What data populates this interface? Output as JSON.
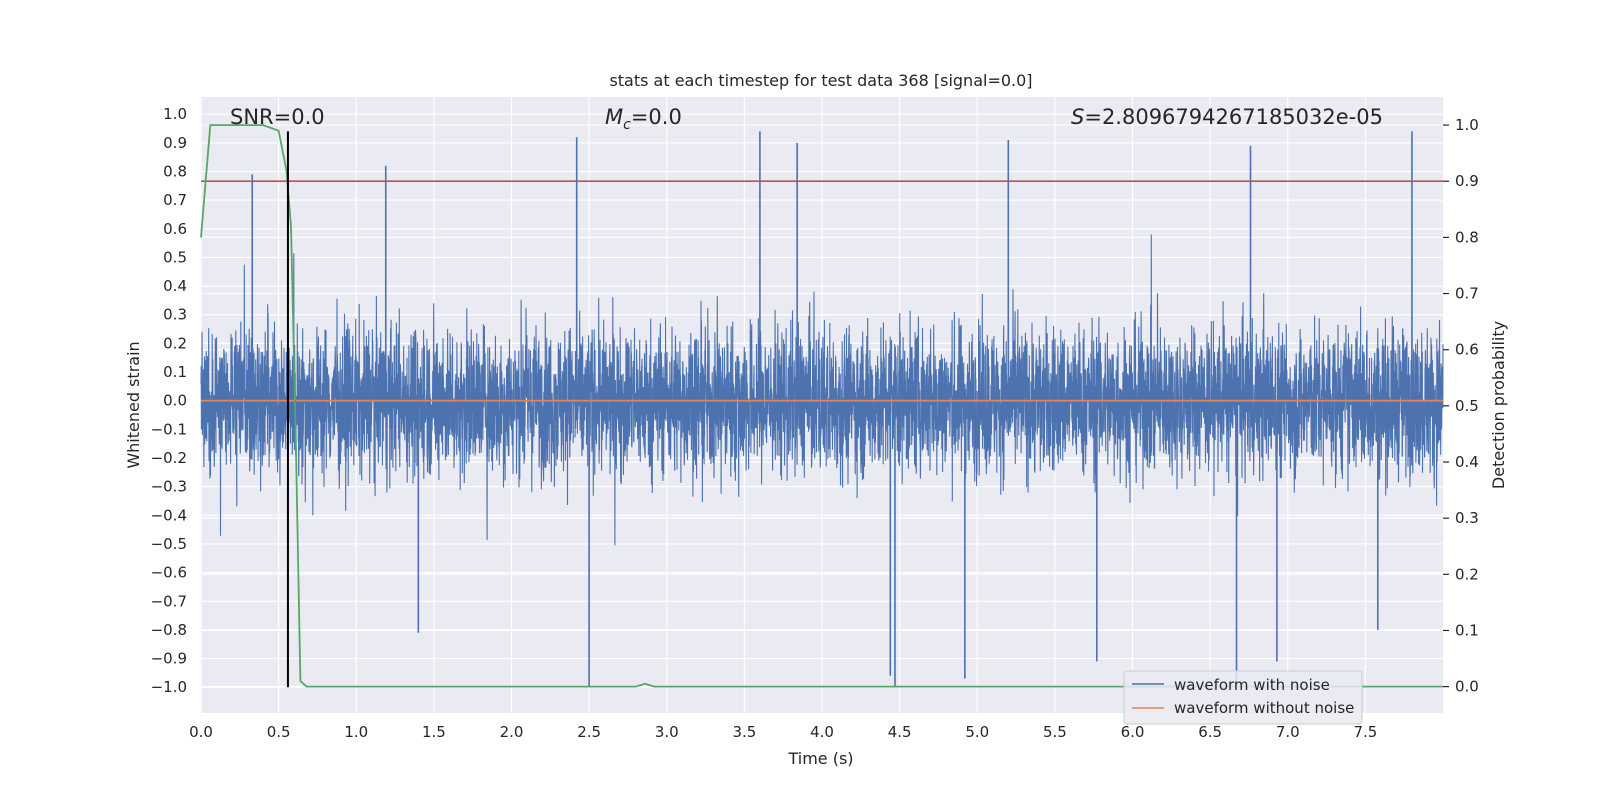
{
  "chart_data": {
    "type": "line",
    "title": "stats at each timestep for test data 368 [signal=0.0]",
    "xlabel": "Time (s)",
    "ylabel": "Whitened strain",
    "y2label": "Detection probability",
    "xlim": [
      0.0,
      8.0
    ],
    "ylim": [
      -1.09,
      1.06
    ],
    "y2lim": [
      -0.047,
      1.05
    ],
    "x_ticks": [
      0.0,
      0.5,
      1.0,
      1.5,
      2.0,
      2.5,
      3.0,
      3.5,
      4.0,
      4.5,
      5.0,
      5.5,
      6.0,
      6.5,
      7.0,
      7.5
    ],
    "x_tick_labels": [
      "0.0",
      "0.5",
      "1.0",
      "1.5",
      "2.0",
      "2.5",
      "3.0",
      "3.5",
      "4.0",
      "4.5",
      "5.0",
      "5.5",
      "6.0",
      "6.5",
      "7.0",
      "7.5"
    ],
    "y_ticks": [
      1.0,
      0.9,
      0.8,
      0.7,
      0.6,
      0.5,
      0.4,
      0.3,
      0.2,
      0.1,
      0.0,
      -0.1,
      -0.2,
      -0.3,
      -0.4,
      -0.5,
      -0.6,
      -0.7,
      -0.8,
      -0.9,
      -1.0
    ],
    "y_tick_labels": [
      "1.0",
      "0.9",
      "0.8",
      "0.7",
      "0.6",
      "0.5",
      "0.4",
      "0.3",
      "0.2",
      "0.1",
      "0.0",
      "−0.1",
      "−0.2",
      "−0.3",
      "−0.4",
      "−0.5",
      "−0.6",
      "−0.7",
      "−0.8",
      "−0.9",
      "−1.0"
    ],
    "y2_ticks": [
      1.0,
      0.9,
      0.8,
      0.7,
      0.6,
      0.5,
      0.4,
      0.3,
      0.2,
      0.1,
      0.0
    ],
    "y2_tick_labels": [
      "1.0",
      "0.9",
      "0.8",
      "0.7",
      "0.6",
      "0.5",
      "0.4",
      "0.3",
      "0.2",
      "0.1",
      "0.0"
    ],
    "grid": true,
    "annotations": {
      "snr": "SNR=0.0",
      "mc_symbol": "M",
      "mc_subscript": "c",
      "mc_value": "=0.0",
      "s_symbol": "S",
      "s_value": "=2.8096794267185032e-05"
    },
    "series": [
      {
        "name": "waveform with noise",
        "color": "#4c72b0",
        "kind": "noise",
        "envelope_typical": 0.5,
        "peak_spikes": [
          {
            "x": 0.33,
            "y": 0.79
          },
          {
            "x": 1.19,
            "y": 0.82
          },
          {
            "x": 2.42,
            "y": 0.92
          },
          {
            "x": 3.6,
            "y": 0.94
          },
          {
            "x": 3.84,
            "y": 0.9
          },
          {
            "x": 5.2,
            "y": 0.91
          },
          {
            "x": 6.76,
            "y": 0.89
          },
          {
            "x": 7.8,
            "y": 0.94
          },
          {
            "x": 2.5,
            "y": -1.0
          },
          {
            "x": 4.44,
            "y": -0.96
          },
          {
            "x": 4.47,
            "y": -1.0
          },
          {
            "x": 4.92,
            "y": -0.97
          },
          {
            "x": 6.67,
            "y": -1.0
          },
          {
            "x": 6.93,
            "y": -0.91
          },
          {
            "x": 5.77,
            "y": -0.91
          },
          {
            "x": 1.4,
            "y": -0.81
          },
          {
            "x": 7.58,
            "y": -0.8
          }
        ]
      },
      {
        "name": "waveform without noise",
        "color": "#dd8452",
        "x": [
          0.0,
          8.0
        ],
        "y": [
          0.0,
          0.0
        ]
      },
      {
        "name": "detection probability",
        "color": "#55a868",
        "axis": "right",
        "x": [
          0.0,
          0.06,
          0.1,
          0.2,
          0.3,
          0.4,
          0.5,
          0.55,
          0.58,
          0.61,
          0.64,
          0.68,
          2.8,
          2.86,
          2.92,
          2.96,
          8.0
        ],
        "y": [
          0.8,
          1.0,
          1.0,
          1.0,
          1.0,
          1.0,
          0.99,
          0.92,
          0.82,
          0.45,
          0.01,
          0.0,
          0.0,
          0.005,
          0.0,
          0.0,
          0.0
        ]
      }
    ],
    "threshold_line": {
      "color": "#c44e52",
      "value": 0.9,
      "axis": "right"
    },
    "marker_line": {
      "color": "#000000",
      "x": 0.56,
      "y_from": -1.0,
      "y_to": 0.94
    },
    "legend": {
      "placement": "lower-right",
      "entries": [
        {
          "label": "waveform with noise",
          "color": "#4c72b0"
        },
        {
          "label": "waveform without noise",
          "color": "#dd8452"
        }
      ]
    },
    "colors": {
      "plot_bg": "#eaeaf2",
      "grid": "#ffffff",
      "text": "#262626"
    }
  }
}
